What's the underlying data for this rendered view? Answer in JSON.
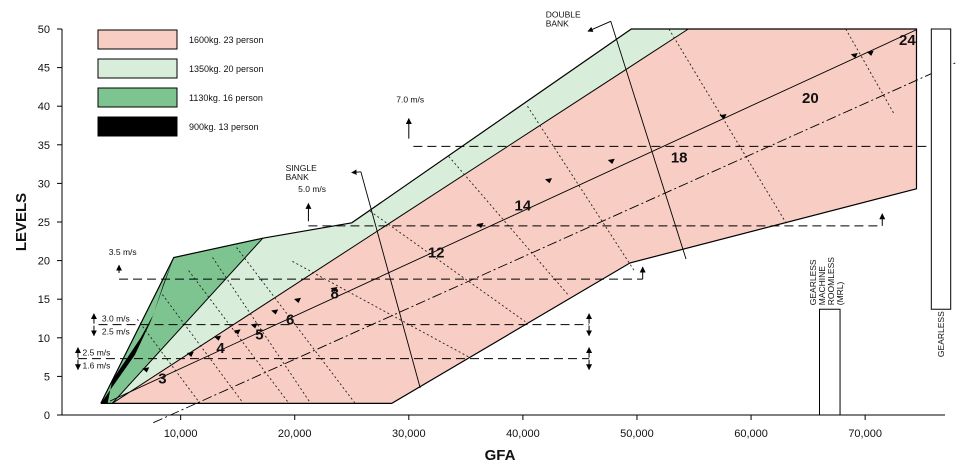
{
  "chart_data": {
    "type": "area",
    "xlabel": "GFA",
    "ylabel": "LEVELS",
    "xlim": [
      -400,
      77000
    ],
    "ylim": [
      0,
      50
    ],
    "x_ticks": [
      {
        "v": 10000,
        "label": "10,000"
      },
      {
        "v": 20000,
        "label": "20,000"
      },
      {
        "v": 30000,
        "label": "30,000"
      },
      {
        "v": 40000,
        "label": "40,000"
      },
      {
        "v": 50000,
        "label": "50,000"
      },
      {
        "v": 60000,
        "label": "60,000"
      },
      {
        "v": 70000,
        "label": "70,000"
      }
    ],
    "y_ticks": [
      {
        "v": 0,
        "label": "0"
      },
      {
        "v": 5,
        "label": "5"
      },
      {
        "v": 10,
        "label": "10"
      },
      {
        "v": 15,
        "label": "15"
      },
      {
        "v": 20,
        "label": "20"
      },
      {
        "v": 25,
        "label": "25"
      },
      {
        "v": 30,
        "label": "30"
      },
      {
        "v": 35,
        "label": "35"
      },
      {
        "v": 40,
        "label": "40"
      },
      {
        "v": 45,
        "label": "45"
      },
      {
        "v": 50,
        "label": "50"
      }
    ],
    "legend": [
      {
        "label": "1600kg. 23 person",
        "color": "#f8cdc4"
      },
      {
        "label": "1350kg. 20 person",
        "color": "#d8eedb"
      },
      {
        "label": "1130kg. 16 person",
        "color": "#7ec491"
      },
      {
        "label": "900kg. 13 person",
        "color": "#000000"
      }
    ],
    "series": [
      {
        "name": "900kg. 13 person",
        "color": "#000000",
        "points": [
          [
            3600,
            1.5
          ],
          [
            4000,
            4.5
          ],
          [
            6500,
            10
          ],
          [
            7600,
            13
          ],
          [
            8500,
            17
          ],
          [
            9400,
            20.4
          ],
          [
            7400,
            12.2
          ],
          [
            6000,
            7.8
          ],
          [
            3000,
            1.5
          ]
        ]
      },
      {
        "name": "1130kg. 16 person",
        "color": "#7ec491",
        "points": [
          [
            3000,
            1.5
          ],
          [
            9400,
            20.4
          ],
          [
            17200,
            22.9
          ],
          [
            4000,
            1.5
          ]
        ]
      },
      {
        "name": "1350kg. 20 person",
        "color": "#d8eedb",
        "points": [
          [
            4000,
            1.5
          ],
          [
            17200,
            22.9
          ],
          [
            25000,
            24.9
          ],
          [
            49500,
            50
          ],
          [
            54500,
            50
          ],
          [
            4000,
            1.5
          ]
        ]
      },
      {
        "name": "1600kg. 23 person",
        "color": "#f8cdc4",
        "points": [
          [
            4000,
            1.5
          ],
          [
            28500,
            1.5
          ],
          [
            49400,
            19.7
          ],
          [
            74500,
            29.3
          ],
          [
            74500,
            50
          ],
          [
            54500,
            50
          ]
        ]
      }
    ],
    "zone_lines": [
      [
        [
          6200,
          12.4
        ],
        [
          11700,
          1.5
        ]
      ],
      [
        [
          8400,
          15.6
        ],
        [
          15500,
          1.5
        ]
      ],
      [
        [
          10700,
          18.7
        ],
        [
          19500,
          1.5
        ]
      ],
      [
        [
          12800,
          20.4
        ],
        [
          21400,
          1.5
        ]
      ],
      [
        [
          14900,
          21.7
        ],
        [
          25300,
          1.5
        ]
      ],
      [
        [
          19800,
          19.9
        ],
        [
          35400,
          7.4
        ]
      ],
      [
        [
          26600,
          26.4
        ],
        [
          40200,
          12.1
        ]
      ],
      [
        [
          33500,
          33.5
        ],
        [
          44000,
          15.5
        ]
      ],
      [
        [
          40400,
          40
        ],
        [
          49800,
          18.6
        ]
      ],
      [
        [
          52800,
          50
        ],
        [
          63100,
          24.8
        ]
      ],
      [
        [
          68300,
          50
        ],
        [
          72500,
          39.1
        ]
      ]
    ],
    "bank_lines": [
      {
        "label_lines": [
          "SINGLE",
          "BANK"
        ],
        "label_at": [
          19200,
          31.6
        ],
        "line": [
          [
            25800,
            31.5
          ],
          [
            31000,
            3.5
          ]
        ],
        "arrow_to": [
          25000,
          31.4
        ]
      },
      {
        "label_lines": [
          "DOUBLE",
          "BANK"
        ],
        "label_at": [
          42000,
          51.5
        ],
        "line": [
          [
            47700,
            51.0
          ],
          [
            54300,
            20.2
          ]
        ],
        "arrow_to": [
          45700,
          49.7
        ]
      }
    ],
    "average_line": [
      [
        3800,
        1.8
      ],
      [
        74500,
        49.9
      ]
    ],
    "upper_dashdot_line": [
      [
        7600,
        -1
      ],
      [
        80000,
        47
      ]
    ],
    "flow_arrows": [
      [
        6900,
        5.9
      ],
      [
        10800,
        7.9
      ],
      [
        13200,
        10
      ],
      [
        14900,
        10.8
      ],
      [
        16400,
        11.6
      ],
      [
        18200,
        13.4
      ],
      [
        20200,
        14.9
      ],
      [
        23400,
        16.3
      ],
      [
        36200,
        24.6
      ],
      [
        42200,
        30.4
      ],
      [
        47700,
        32.9
      ],
      [
        57500,
        38.7
      ],
      [
        69000,
        46.6
      ],
      [
        70400,
        46.9
      ]
    ],
    "speed_bands": [
      {
        "label": "7.0 m/s",
        "y": 34.8,
        "x_start": 30400,
        "x_end": 77000,
        "label_x": 28900,
        "label_y": 40.5,
        "arrow_x": 30000,
        "arrow_y": [
          35.8,
          38.4
        ]
      },
      {
        "label": "5.0 m/s",
        "y": 24.5,
        "x_start": 21200,
        "x_end": 71500,
        "label_x": 20300,
        "label_y": 28.9,
        "arrow_x": 21200,
        "arrow_y": [
          25.1,
          27.4
        ],
        "end_arrow_up": true
      },
      {
        "label": "3.5 m/s",
        "y": 17.6,
        "x_start": 4600,
        "x_end": 50500,
        "label_x": 3700,
        "label_y": 20.7,
        "arrow_x": 4600,
        "arrow_y": [
          18.4,
          19.4
        ],
        "end_arrow_up": true
      },
      {
        "label_top": "3.0 m/s",
        "label_bottom": "2.5 m/s",
        "y": 11.7,
        "x_start": 2800,
        "x_end": 45800,
        "label_x": 3100,
        "arrow_x": 2400,
        "end_dbl": true
      },
      {
        "label_top": "2.5 m/s",
        "label_bottom": "1.6 m/s",
        "y": 7.3,
        "x_start": 1000,
        "x_end": 45800,
        "label_x": 1400,
        "arrow_x": 1000,
        "end_dbl": true
      }
    ],
    "region_labels": [
      {
        "text": "3",
        "x": 8400,
        "y": 4.1
      },
      {
        "text": "4",
        "x": 13500,
        "y": 8.0
      },
      {
        "text": "5",
        "x": 16900,
        "y": 9.8
      },
      {
        "text": "6",
        "x": 19600,
        "y": 11.7
      },
      {
        "text": "8",
        "x": 23500,
        "y": 15.1
      },
      {
        "text": "12",
        "x": 32400,
        "y": 20.4
      },
      {
        "text": "14",
        "x": 40000,
        "y": 26.5
      },
      {
        "text": "18",
        "x": 53700,
        "y": 32.7
      },
      {
        "text": "20",
        "x": 65200,
        "y": 40.4
      },
      {
        "text": "24",
        "x": 73700,
        "y": 47.9
      }
    ],
    "equipment_bars": [
      {
        "label_lines": [
          "GEARLESS",
          "MACHINE",
          "ROOMLESS",
          "(MRL)"
        ],
        "x0": 66000,
        "x1": 67800,
        "y0": 0,
        "y1": 13.7
      },
      {
        "label_lines": [
          "GEARLESS"
        ],
        "x0": 75800,
        "x1": 77500,
        "y0": 13.7,
        "y1": 50
      }
    ]
  }
}
